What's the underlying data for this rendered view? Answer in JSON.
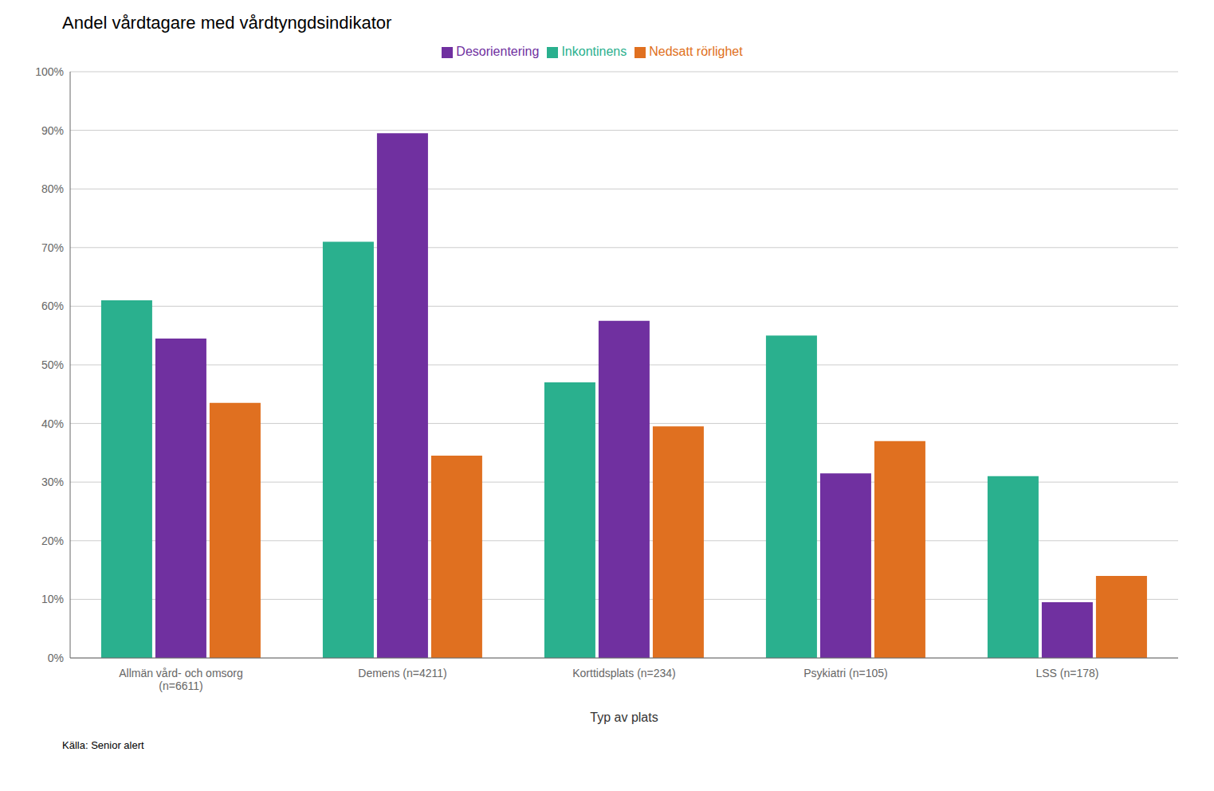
{
  "chart_data": {
    "type": "bar",
    "title": "Andel vårdtagare med vårdtyngdsindikator",
    "xlabel": "Typ av plats",
    "annotations": [
      "Källa: Senior alert"
    ],
    "categories": [
      "Allmän vård- och omsorg\n(n=6611)",
      "Demens (n=4211)",
      "Korttidsplats (n=234)",
      "Psykiatri (n=105)",
      "LSS (n=178)"
    ],
    "series": [
      {
        "name": "Inkontinens",
        "color": "#2ab08e",
        "values": [
          0.61,
          0.71,
          0.47,
          0.55,
          0.31
        ]
      },
      {
        "name": "Desorientering",
        "color": "#7030a0",
        "values": [
          0.545,
          0.895,
          0.575,
          0.315,
          0.095
        ]
      },
      {
        "name": "Nedsatt rörlighet",
        "color": "#e07020",
        "values": [
          0.435,
          0.345,
          0.395,
          0.37,
          0.14
        ]
      }
    ],
    "ylim": [
      0,
      1.0
    ],
    "yticks": [
      {
        "value": 0,
        "label": "0%"
      },
      {
        "value": 0.1,
        "label": "10%"
      },
      {
        "value": 0.2,
        "label": "20%"
      },
      {
        "value": 0.3,
        "label": "30%"
      },
      {
        "value": 0.4,
        "label": "40%"
      },
      {
        "value": 0.5,
        "label": "50%"
      },
      {
        "value": 0.6,
        "label": "60%"
      },
      {
        "value": 0.7,
        "label": "70%"
      },
      {
        "value": 0.8,
        "label": "80%"
      },
      {
        "value": 0.9,
        "label": "90%"
      },
      {
        "value": 1.0,
        "label": "100%"
      }
    ],
    "grid": true,
    "legend": "top"
  }
}
